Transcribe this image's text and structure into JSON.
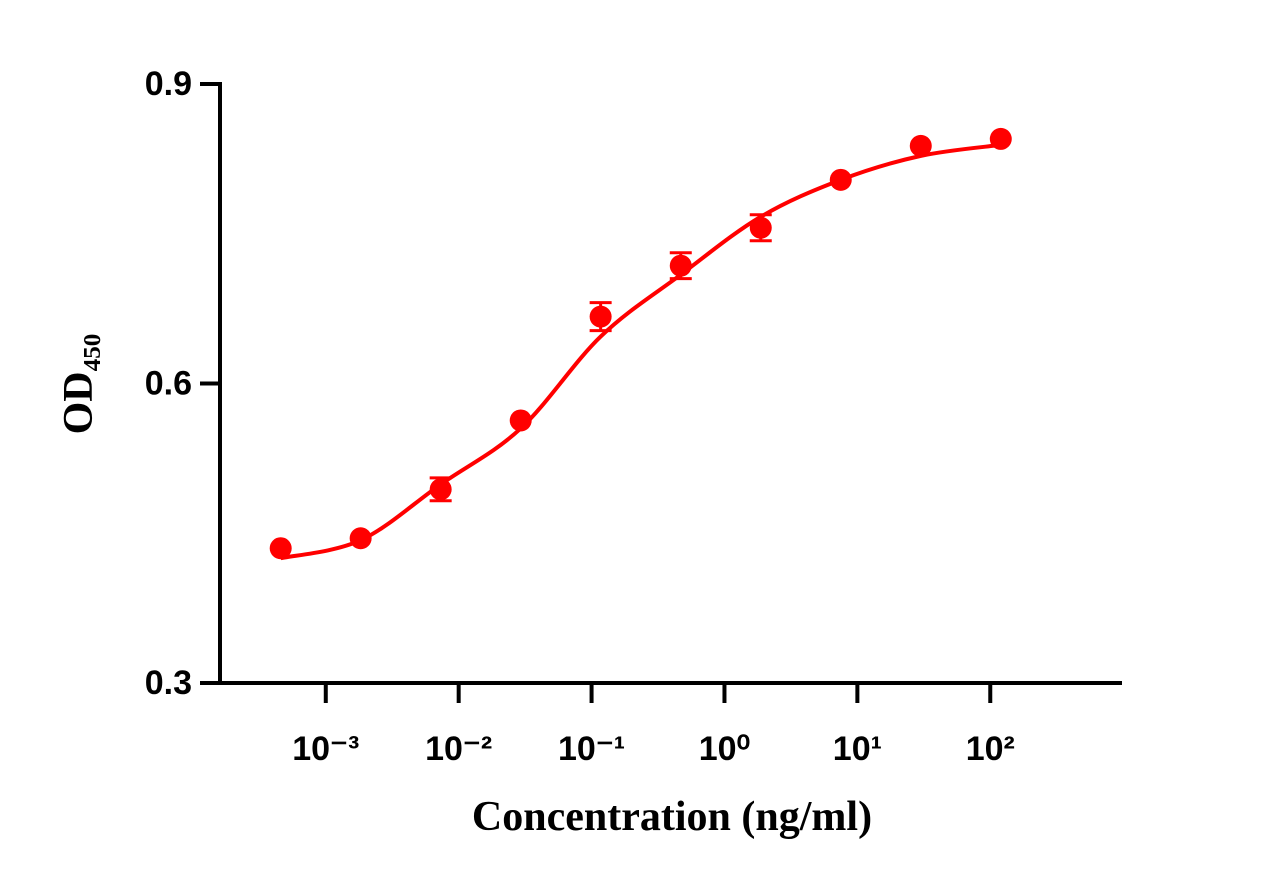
{
  "chart_data": {
    "type": "scatter",
    "x_label": "Concentration (ng/ml)",
    "y_label": "OD₄₅₀",
    "x_log": true,
    "xlim": [
      0.00016,
      980
    ],
    "xticks": [
      {
        "value": 0.001,
        "label": "10⁻³"
      },
      {
        "value": 0.01,
        "label": "10⁻²"
      },
      {
        "value": 0.1,
        "label": "10⁻¹"
      },
      {
        "value": 1,
        "label": "10⁰"
      },
      {
        "value": 10,
        "label": "10¹"
      },
      {
        "value": 100,
        "label": "10²"
      }
    ],
    "ylim": [
      0.3,
      0.9
    ],
    "yticks": [
      0.3,
      0.6,
      0.9
    ],
    "series": [
      {
        "color": "#ff0000",
        "x": [
          0.000458,
          0.00183,
          0.00732,
          0.0293,
          0.117,
          0.469,
          1.875,
          7.5,
          30,
          120
        ],
        "values": [
          0.435,
          0.445,
          0.494,
          0.563,
          0.667,
          0.718,
          0.756,
          0.804,
          0.838,
          0.845
        ],
        "errors": [
          null,
          null,
          0.0115,
          null,
          0.014,
          0.013,
          0.013,
          null,
          null,
          null
        ]
      }
    ],
    "curve": {
      "color": "#ff0000",
      "x": [
        0.000458,
        0.00183,
        0.00732,
        0.0293,
        0.117,
        0.469,
        1.875,
        7.5,
        30,
        120
      ],
      "values": [
        0.425,
        0.443,
        0.499,
        0.555,
        0.647,
        0.709,
        0.767,
        0.804,
        0.828,
        0.839
      ]
    }
  }
}
